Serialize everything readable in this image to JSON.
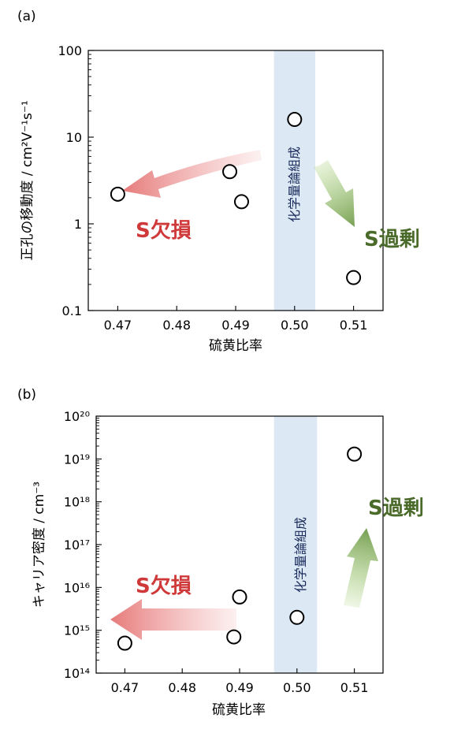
{
  "colors": {
    "deficit": "#d0393a",
    "excess": "#4a6b2a",
    "stoichiometric_band": "#dce9f5"
  },
  "chart_data": [
    {
      "panel": "(a)",
      "type": "scatter",
      "xlabel": "硫黄比率",
      "ylabel": "正孔の移動度 / cm²V⁻¹s⁻¹",
      "xlim": [
        0.465,
        0.515
      ],
      "ylim": [
        0.1,
        100
      ],
      "yscale": "log",
      "x_ticks": [
        "0.47",
        "0.48",
        "0.49",
        "0.50",
        "0.51"
      ],
      "y_ticks": [
        "100",
        "10",
        "1",
        "0.1"
      ],
      "points": [
        {
          "x": 0.47,
          "y": 2.2
        },
        {
          "x": 0.489,
          "y": 4.0
        },
        {
          "x": 0.491,
          "y": 1.8
        },
        {
          "x": 0.5,
          "y": 16
        },
        {
          "x": 0.51,
          "y": 0.24
        }
      ],
      "band": {
        "x": [
          0.4965,
          0.5035
        ],
        "label": "化学量論組成"
      },
      "annotations": {
        "deficit": "S欠損",
        "excess": "S過剰"
      }
    },
    {
      "panel": "(b)",
      "type": "scatter",
      "xlabel": "硫黄比率",
      "ylabel": "キャリア密度 / cm⁻³",
      "xlim": [
        0.465,
        0.515
      ],
      "ylim": [
        100000000000000.0,
        1e+20
      ],
      "yscale": "log",
      "x_ticks": [
        "0.47",
        "0.48",
        "0.49",
        "0.50",
        "0.51"
      ],
      "y_ticks": [
        "10²⁰",
        "10¹⁹",
        "10¹⁸",
        "10¹⁷",
        "10¹⁶",
        "10¹⁵",
        "10¹⁴"
      ],
      "points": [
        {
          "x": 0.47,
          "y": 500000000000000.0
        },
        {
          "x": 0.489,
          "y": 700000000000000.0
        },
        {
          "x": 0.49,
          "y": 6000000000000000.0
        },
        {
          "x": 0.5,
          "y": 2000000000000000.0
        },
        {
          "x": 0.51,
          "y": 1.3e+19
        }
      ],
      "band": {
        "x": [
          0.496,
          0.5035
        ],
        "label": "化学量論組成"
      },
      "annotations": {
        "deficit": "S欠損",
        "excess": "S過剰"
      }
    }
  ]
}
